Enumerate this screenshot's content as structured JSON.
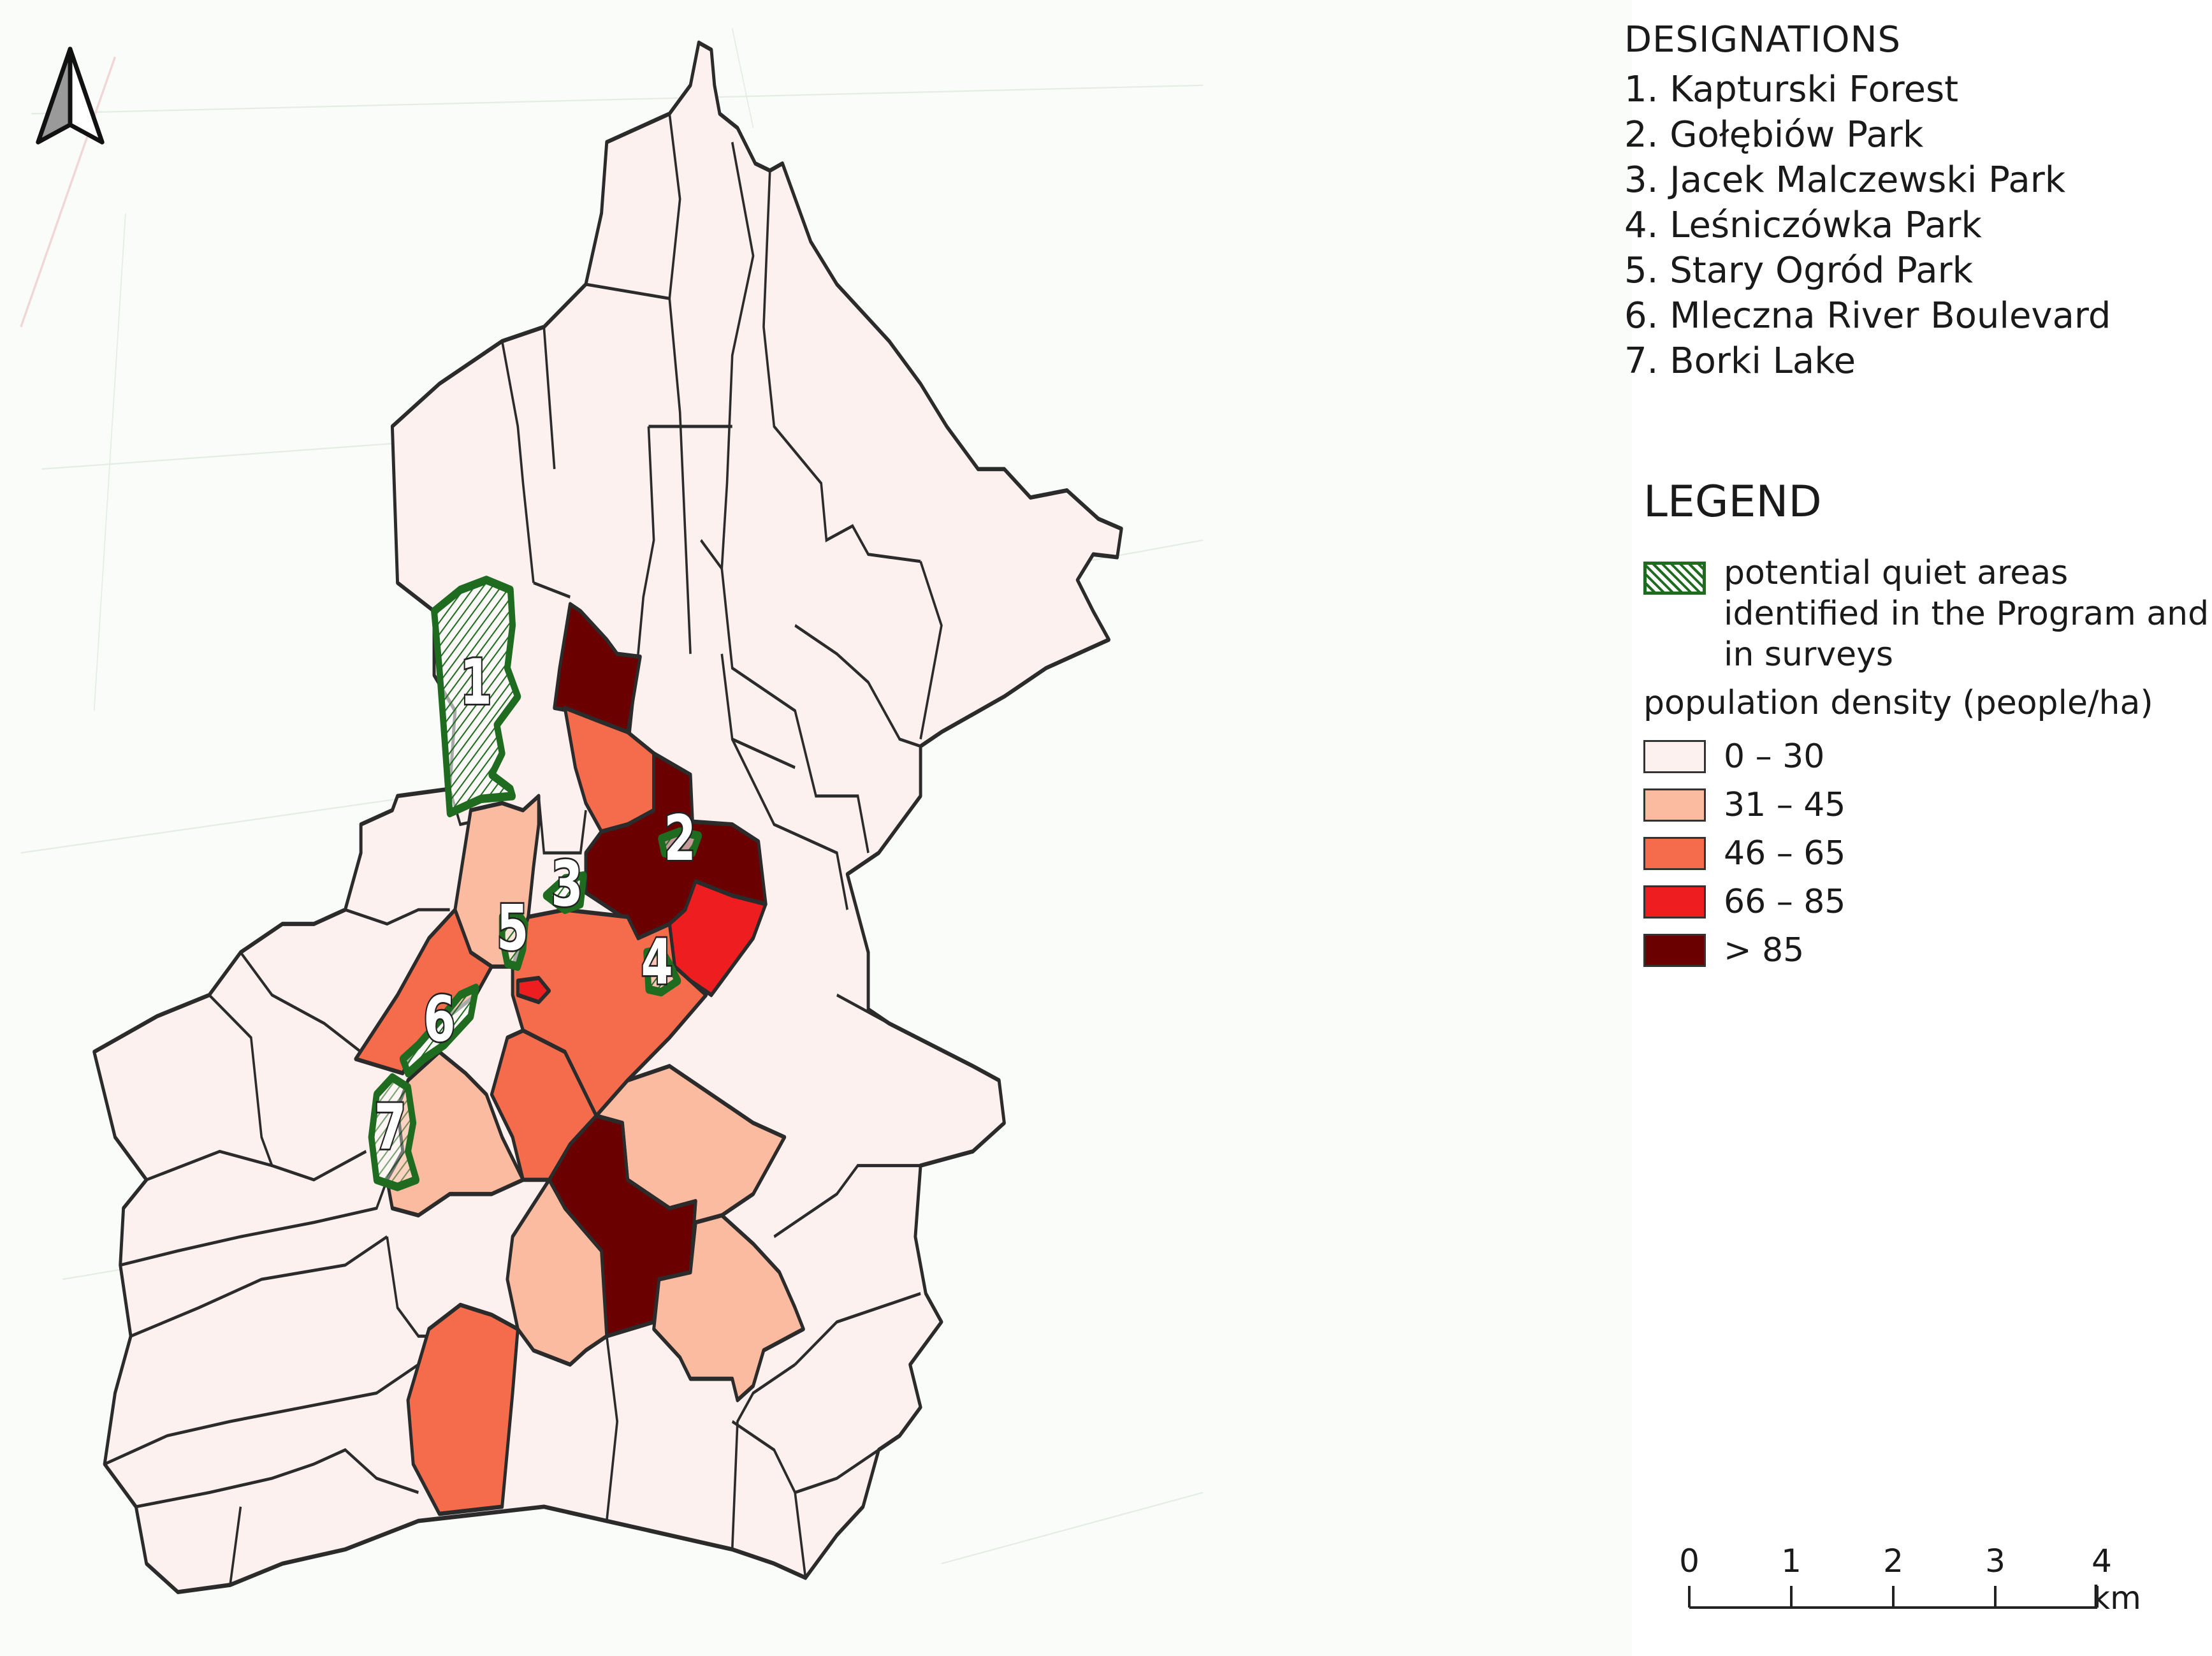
{
  "designations": {
    "title": "DESIGNATIONS",
    "items": [
      "1. Kapturski Forest",
      "2. Gołębiów Park",
      "3. Jacek Malczewski Park",
      "4. Leśniczówka Park",
      "5. Stary Ogród Park",
      "6. Mleczna River Boulevard",
      "7. Borki Lake"
    ]
  },
  "legend": {
    "title": "LEGEND",
    "quiet_areas": "potential quiet areas identified in the Program and in surveys",
    "quiet_color": "#1f6b1f",
    "density_title": "population density (people/ha)",
    "classes": [
      {
        "label": "0 – 30",
        "color": "#fdf1ef"
      },
      {
        "label": "31 – 45",
        "color": "#fbbba0"
      },
      {
        "label": "46 – 65",
        "color": "#f56c4c"
      },
      {
        "label": "66 – 85",
        "color": "#ee1d1f"
      },
      {
        "label": "> 85",
        "color": "#6a0000"
      }
    ]
  },
  "quiet_area_labels": [
    "1",
    "2",
    "3",
    "4",
    "5",
    "6",
    "7"
  ],
  "scalebar": {
    "labels": [
      "0",
      "1",
      "2",
      "3",
      "4 km"
    ]
  },
  "north_arrow": {
    "icon": "north-arrow-icon"
  }
}
